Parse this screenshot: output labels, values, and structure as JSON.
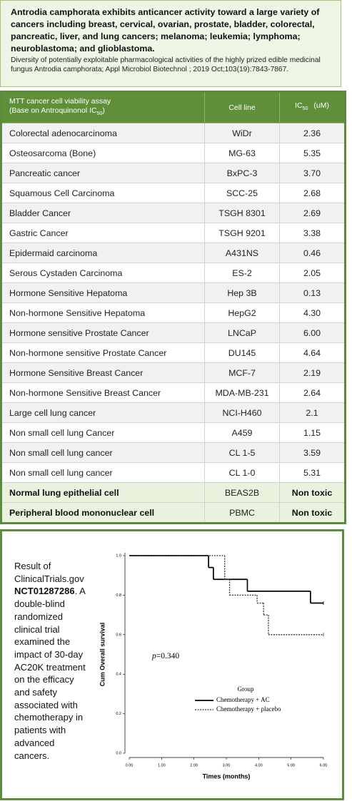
{
  "header": {
    "title": "Antrodia camphorata  exhibits anticancer activity toward a large variety of cancers including breast, cervical, ovarian, prostate, bladder, colorectal, pancreatic, liver, and lung cancers; melanoma; leukemia; lymphoma; neuroblastoma; and glioblastoma.",
    "citation": "Diversity of potentially exploitable pharmacological activities of the highly prized edible medicinal fungus Antrodia camphorata; Appl Microbiol Biotechnol ; 2019 Oct;103(19):7843-7867."
  },
  "table": {
    "columns": [
      {
        "lines": [
          "MTT cancer cell viability assay",
          "(Base on Antroquinonol IC"
        ],
        "sub": "50",
        "after": ")"
      },
      {
        "lines": [
          "Cell line"
        ]
      },
      {
        "lines": [
          "IC"
        ],
        "sub": "50",
        "after": "(uM)"
      }
    ],
    "rows": [
      [
        "Colorectal adenocarcinoma",
        "WiDr",
        "2.36"
      ],
      [
        "Osteosarcoma (Bone)",
        "MG-63",
        "5.35"
      ],
      [
        "Pancreatic  cancer",
        "BxPC-3",
        "3.70"
      ],
      [
        "Squamous Cell Carcinoma",
        "SCC-25",
        "2.68"
      ],
      [
        "Bladder Cancer",
        "TSGH 8301",
        "2.69"
      ],
      [
        "Gastric Cancer",
        "TSGH 9201",
        "3.38"
      ],
      [
        "Epidermaid carcinoma",
        "A431NS",
        "0.46"
      ],
      [
        "Serous Cystaden Carcinoma",
        "ES-2",
        "2.05"
      ],
      [
        "Hormone Sensitive Hepatoma",
        "Hep 3B",
        "0.13"
      ],
      [
        "Non-hormone Sensitive Hepatoma",
        "HepG2",
        "4.30"
      ],
      [
        "Hormone sensitive Prostate Cancer",
        "LNCaP",
        "6.00"
      ],
      [
        "Non-hormone sensitive Prostate Cancer",
        "DU145",
        "4.64"
      ],
      [
        "Hormone Sensitive Breast Cancer",
        "MCF-7",
        "2.19"
      ],
      [
        "Non-hormone Sensitive Breast Cancer",
        "MDA-MB-231",
        "2.64"
      ],
      [
        "Large cell lung cancer",
        "NCI-H460",
        "2.1"
      ],
      [
        "Non small cell lung Cancer",
        "A459",
        "1.15"
      ],
      [
        "Non small cell lung cancer",
        "CL 1-5",
        "3.59"
      ],
      [
        "Non small cell lung cancer",
        "CL 1-0",
        "5.31"
      ],
      [
        "Normal lung epithelial cell",
        "BEAS2B",
        "Non toxic"
      ],
      [
        "Peripheral blood mononuclear cell",
        "PBMC",
        "Non toxic"
      ]
    ]
  },
  "trial": {
    "note": {
      "before": "Result of ClinicalTrials.gov ",
      "bold": "NCT01287286",
      "after": ". A double-blind randomized clinical trial examined the impact of 30-day AC20K treatment on the efficacy and safety associated with chemotherapy in patients with advanced cancers."
    }
  },
  "chart_data": {
    "type": "line",
    "step": "post",
    "xlabel": "Times (months)",
    "ylabel": "Cum Overall survival",
    "annotation": {
      "symbol": "p",
      "text": "=0.340"
    },
    "legend_title": "Group",
    "xlim": [
      0,
      6
    ],
    "ylim": [
      0,
      1
    ],
    "xticks": [
      {
        "value": 0,
        "label": "0.00"
      },
      {
        "value": 1,
        "label": "1.00"
      },
      {
        "value": 2,
        "label": "2.00"
      },
      {
        "value": 3,
        "label": "3.00"
      },
      {
        "value": 4,
        "label": "4.00"
      },
      {
        "value": 5,
        "label": "5.00"
      },
      {
        "value": 6,
        "label": "6.00"
      }
    ],
    "yticks": [
      {
        "value": 0,
        "label": "0.0"
      },
      {
        "value": 0.2,
        "label": "0.2"
      },
      {
        "value": 0.4,
        "label": "0.4"
      },
      {
        "value": 0.6,
        "label": "0.6"
      },
      {
        "value": 0.8,
        "label": "0.8"
      },
      {
        "value": 1,
        "label": "1.0"
      }
    ],
    "series": [
      {
        "name": "Chemotherapy + AC",
        "color": "#000000",
        "style": "solid",
        "x": [
          0,
          2.45,
          2.6,
          3.65,
          5.6,
          6.0
        ],
        "values": [
          1.0,
          0.94,
          0.88,
          0.82,
          0.76,
          0.76
        ]
      },
      {
        "name": "Chemotherapy + placebo",
        "color": "#333333",
        "style": "dotted",
        "x": [
          0,
          2.95,
          3.1,
          3.95,
          4.15,
          4.3,
          6.0
        ],
        "values": [
          1.0,
          0.88,
          0.8,
          0.76,
          0.7,
          0.6,
          0.6
        ]
      }
    ]
  }
}
